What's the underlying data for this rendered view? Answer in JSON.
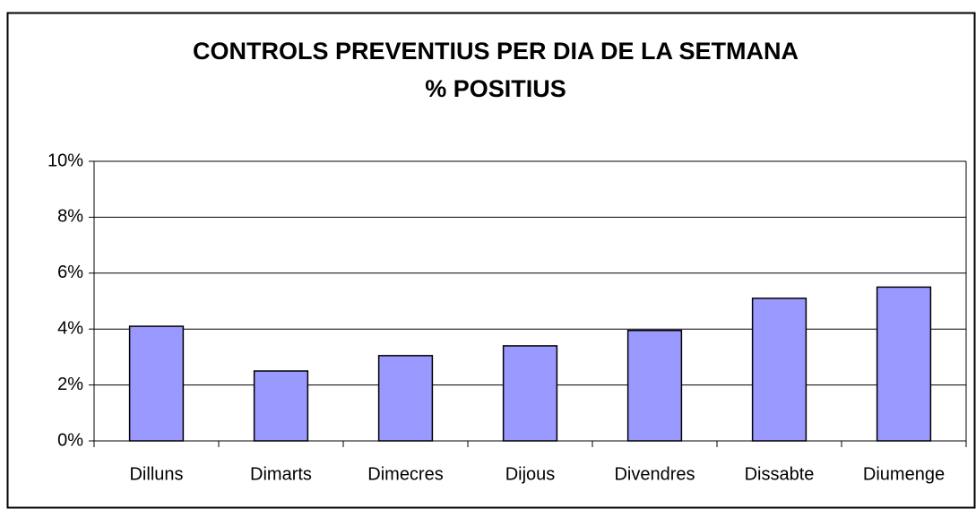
{
  "chart_data": {
    "type": "bar",
    "title": "CONTROLS PREVENTIUS PER DIA DE LA SETMANA",
    "subtitle": "% POSITIUS",
    "categories": [
      "Dilluns",
      "Dimarts",
      "Dimecres",
      "Dijous",
      "Divendres",
      "Dissabte",
      "Diumenge"
    ],
    "values": [
      4.1,
      2.5,
      3.05,
      3.4,
      3.95,
      5.1,
      5.5
    ],
    "color": "#9999ff",
    "ylim": [
      0,
      10
    ],
    "yticks": [
      {
        "value": 0,
        "label": "0%"
      },
      {
        "value": 2,
        "label": "2%"
      },
      {
        "value": 4,
        "label": "4%"
      },
      {
        "value": 6,
        "label": "6%"
      },
      {
        "value": 8,
        "label": "8%"
      },
      {
        "value": 10,
        "label": "10%"
      }
    ],
    "grid": true
  }
}
